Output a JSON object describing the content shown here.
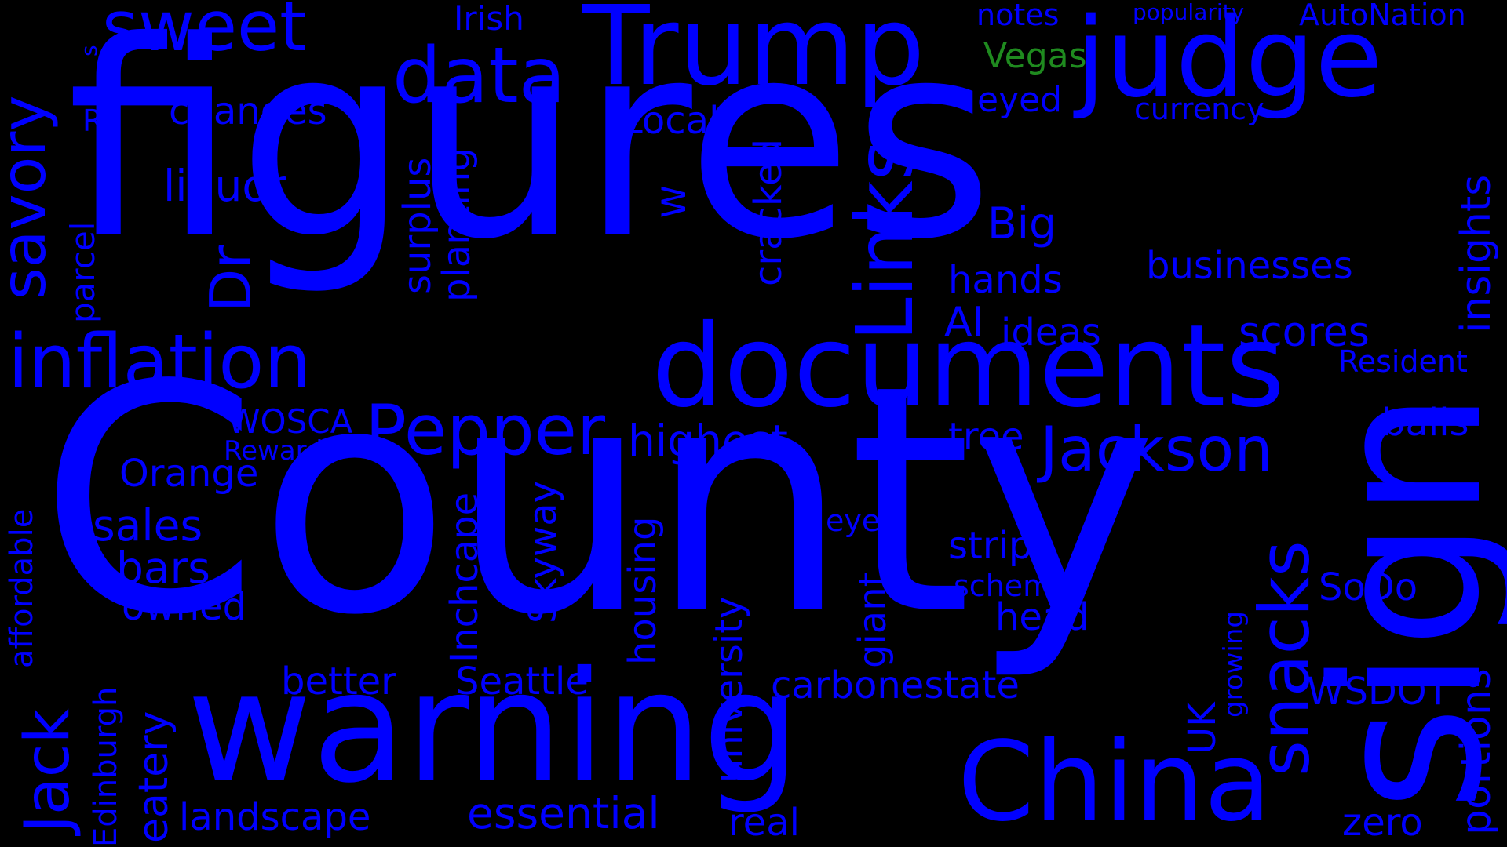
{
  "colors": {
    "background": "#000000",
    "primary": "#0000ff",
    "accent": "#1f8a1f"
  },
  "words": {
    "county": "County",
    "figures": "figures",
    "warning": "warning",
    "documents": "documents",
    "trump": "Trump",
    "judge": "judge",
    "sign": "sign",
    "china": "China",
    "inflation": "inflation",
    "data": "data",
    "sweet": "sweet",
    "jackson": "Jackson",
    "pepper": "Pepper",
    "links": "Links",
    "snacks": "snacks",
    "savory": "savory",
    "jack": "Jack",
    "dr": "Dr",
    "essential": "essential",
    "highest": "highest",
    "landscape": "landscape",
    "irish": "Irish",
    "vegas": "Vegas",
    "notes": "notes",
    "popularity": "popularity",
    "autonation": "AutoNation",
    "currency": "currency",
    "eyed": "eyed",
    "local": "Local",
    "changes": "changes",
    "rs": "Rs",
    "liquor": "liquor",
    "big": "Big",
    "businesses": "businesses",
    "hands": "hands",
    "insights": "insights",
    "ai": "AI",
    "ideas": "ideas",
    "scores": "scores",
    "resident": "Resident",
    "wosca": "WOSCA",
    "rewards": "Rewards",
    "orange": "Orange",
    "tree": "tree",
    "balls": "balls",
    "sales": "sales",
    "bars": "bars",
    "owned": "owned",
    "eyes": "eyes",
    "strip": "strip",
    "scheme": "scheme",
    "head": "head",
    "sodo": "SoDo",
    "better": "better",
    "seattle": "Seattle",
    "carbonestate": "carbonestate",
    "wsdot": "WSDOT",
    "real": "real",
    "zero": "zero",
    "surplus": "surplus",
    "planting": "planting",
    "parcel": "parcel",
    "w": "W",
    "cracked": "cracked",
    "affordable": "affordable",
    "inchcape": "Inchcape",
    "skyway": "Skyway",
    "housing": "housing",
    "university": "university",
    "giant": "giant",
    "growing": "growing",
    "uk": "UK",
    "portions": "portions",
    "edinburgh": "Edinburgh",
    "eatery": "eatery",
    "s": "s"
  }
}
